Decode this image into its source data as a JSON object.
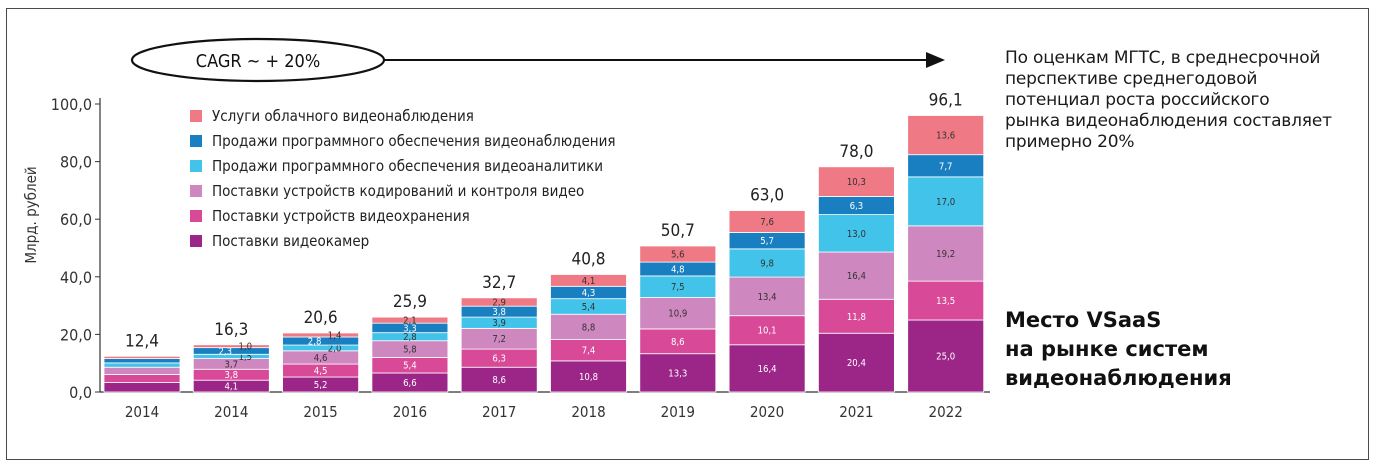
{
  "cagr_label": "CAGR ~  + 20%",
  "note": "По оценкам МГТС, в среднесрочной\nперспективе среднегодовой\nпотенциал роста российского\nрынка видеонаблюдения составляет\nпримерно 20%",
  "heading": "Место VSaaS\nна рынке систем\nвидеонаблюдения",
  "chart_data": {
    "type": "bar",
    "stacked": true,
    "ylabel": "Млрд. рублей",
    "ylim": [
      0,
      100
    ],
    "yticks": [
      "0,0",
      "20,0",
      "40,0",
      "60,0",
      "80,0",
      "100,0"
    ],
    "categories": [
      "2014",
      "2014",
      "2015",
      "2016",
      "2017",
      "2018",
      "2019",
      "2020",
      "2021",
      "2022"
    ],
    "totals": [
      "12,4",
      "16,3",
      "20,6",
      "25,9",
      "32,7",
      "40,8",
      "50,7",
      "63,0",
      "78,0",
      "96,1"
    ],
    "legend_position": "top-left",
    "series": [
      {
        "name": "Поставки видеокамер",
        "color": "#9c2688",
        "values": [
          3.3,
          4.1,
          5.2,
          6.6,
          8.6,
          10.8,
          13.3,
          16.4,
          20.4,
          25.0
        ],
        "labels": [
          "",
          "4,1",
          "5,2",
          "6,6",
          "8,6",
          "10,8",
          "13,3",
          "16,4",
          "20,4",
          "25,0"
        ]
      },
      {
        "name": "Поставки устройств видеохранения",
        "color": "#d84a98",
        "values": [
          2.8,
          3.8,
          4.5,
          5.4,
          6.3,
          7.4,
          8.6,
          10.1,
          11.8,
          13.5
        ],
        "labels": [
          "",
          "3,8",
          "4,5",
          "5,4",
          "6,3",
          "7,4",
          "8,6",
          "10,1",
          "11,8",
          "13,5"
        ]
      },
      {
        "name": "Поставки устройств кодирований и контроля видео",
        "color": "#cf87bf",
        "values": [
          2.5,
          3.7,
          4.6,
          5.8,
          7.2,
          8.8,
          10.9,
          13.4,
          16.4,
          19.2
        ],
        "labels": [
          "",
          "3,7",
          "4,6",
          "5,8",
          "7,2",
          "8,8",
          "10,9",
          "13,4",
          "16,4",
          "19,2"
        ]
      },
      {
        "name": "Продажи программного обеспечения видеоаналитики",
        "color": "#41c3ea",
        "values": [
          1.5,
          1.5,
          2.0,
          2.8,
          3.9,
          5.4,
          7.5,
          9.8,
          13.0,
          17.0
        ],
        "labels": [
          "",
          "1,5",
          "2,0",
          "2,8",
          "3,9",
          "5,4",
          "7,5",
          "9,8",
          "13,0",
          "17,0"
        ]
      },
      {
        "name": "Продажи программного обеспечения видеонаблюдения",
        "color": "#1a7fc0",
        "values": [
          1.5,
          2.3,
          2.8,
          3.3,
          3.8,
          4.3,
          4.8,
          5.7,
          6.3,
          7.7
        ],
        "labels": [
          "",
          "2,3",
          "2,8",
          "3,3",
          "3,8",
          "4,3",
          "4,8",
          "5,7",
          "6,3",
          "7,7"
        ]
      },
      {
        "name": "Услуги облачного видеонаблюдения",
        "color": "#ef7a85",
        "values": [
          0.8,
          1.0,
          1.4,
          2.1,
          2.9,
          4.1,
          5.6,
          7.6,
          10.3,
          13.6
        ],
        "labels": [
          "",
          "1,0",
          "1,4",
          "2,1",
          "2,9",
          "4,1",
          "5,6",
          "7,6",
          "10,3",
          "13,6"
        ]
      }
    ]
  }
}
